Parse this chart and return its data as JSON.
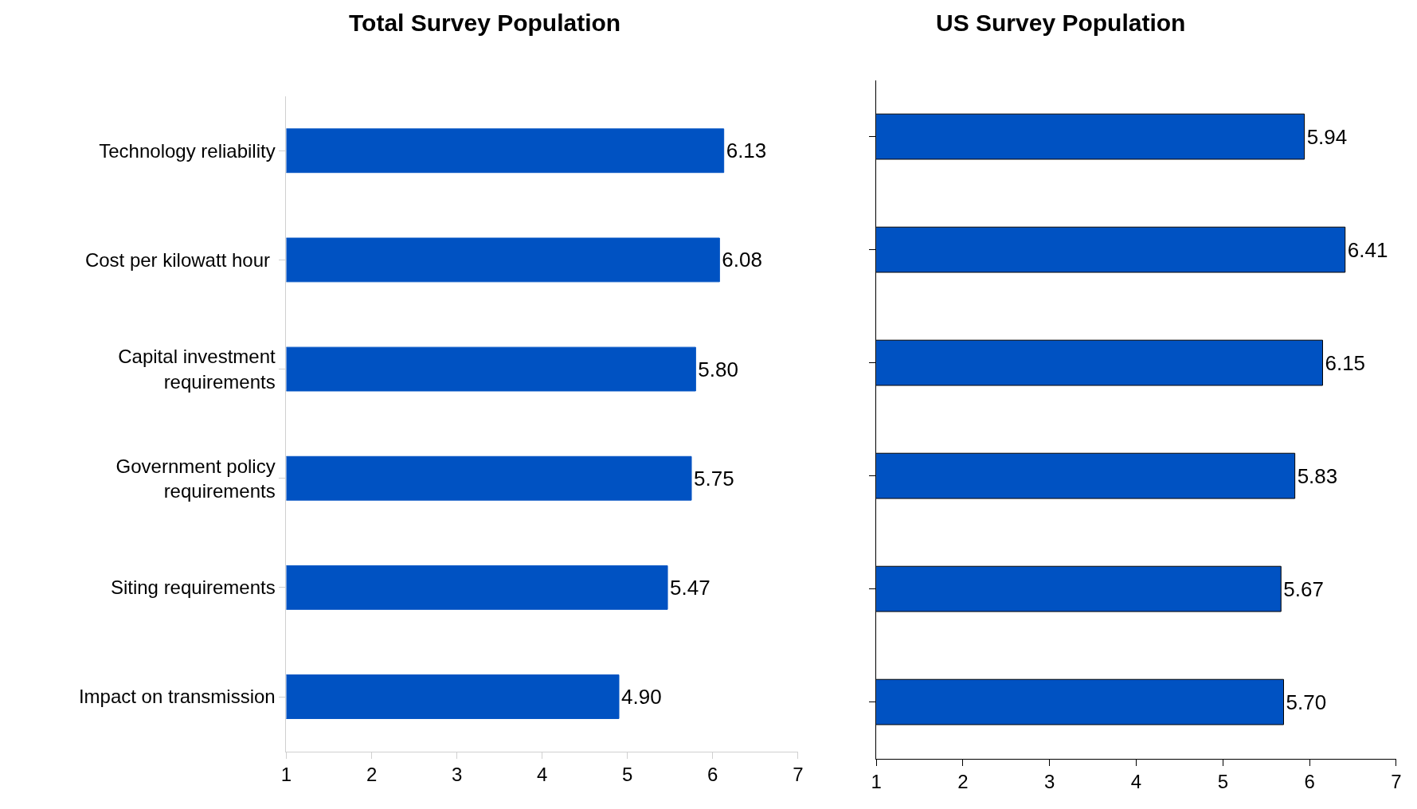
{
  "chart_data": [
    {
      "type": "bar",
      "title": "Total Survey Population",
      "orientation": "horizontal",
      "categories": [
        "Technology reliability",
        "Cost per kilowatt hour ",
        "Capital investment\nrequirements",
        "Government policy\nrequirements",
        "Siting requirements",
        "Impact on transmission"
      ],
      "values": [
        6.13,
        6.08,
        5.8,
        5.75,
        5.47,
        4.9
      ],
      "value_labels": [
        "6.13",
        "6.08",
        "5.80",
        "5.75",
        "5.47",
        "4.90"
      ],
      "color": "#0052c2",
      "xlim": [
        1,
        7
      ],
      "xticks": [
        1,
        2,
        3,
        4,
        5,
        6,
        7
      ]
    },
    {
      "type": "bar",
      "title": "US Survey Population",
      "orientation": "horizontal",
      "categories": [
        null,
        null,
        null,
        null,
        null,
        null
      ],
      "values": [
        5.94,
        6.41,
        6.15,
        5.83,
        5.67,
        5.7
      ],
      "value_labels": [
        "5.94",
        "6.41",
        "6.15",
        "5.83",
        "5.67",
        "5.70"
      ],
      "color": "#0052c2",
      "xlim": [
        1,
        7
      ],
      "xticks": [
        1,
        2,
        3,
        4,
        5,
        6,
        7
      ],
      "tick_labels": "x"
    }
  ]
}
